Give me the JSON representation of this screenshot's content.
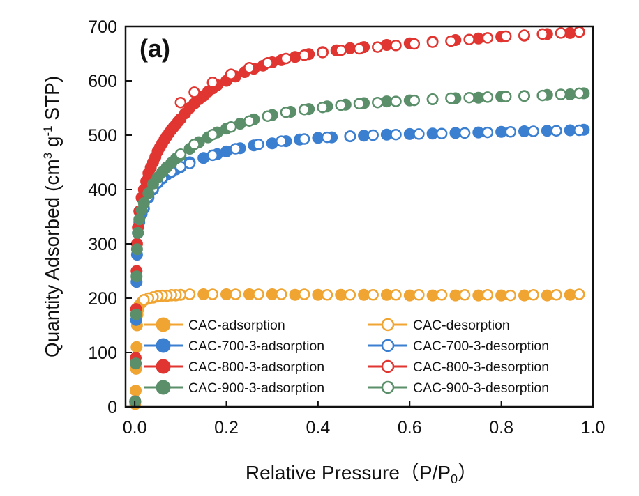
{
  "chart_data": {
    "type": "scatter",
    "panel_label": "(a)",
    "xlabel": {
      "main": "Relative Pressure（P/P",
      "sub": "0",
      "end": "）"
    },
    "ylabel": {
      "part1": "Quantity Adsorbed (cm",
      "sup1": "3",
      "part2": " g",
      "sup2": "-1",
      "part3": " STP)"
    },
    "xlim": [
      -0.02,
      1.0
    ],
    "ylim": [
      0,
      700
    ],
    "xticks": [
      "0.0",
      "0.2",
      "0.4",
      "0.6",
      "0.8",
      "1.0"
    ],
    "yticks": [
      "0",
      "100",
      "200",
      "300",
      "400",
      "500",
      "600",
      "700"
    ],
    "grid": false,
    "legend_position": "lower-right",
    "series": [
      {
        "name": "CAC-adsorption",
        "color": "#f0a533",
        "filled": true,
        "points": [
          [
            0.001,
            5
          ],
          [
            0.002,
            30
          ],
          [
            0.003,
            70
          ],
          [
            0.004,
            110
          ],
          [
            0.005,
            150
          ],
          [
            0.006,
            170
          ],
          [
            0.008,
            180
          ],
          [
            0.01,
            187
          ],
          [
            0.015,
            192
          ],
          [
            0.02,
            196
          ],
          [
            0.03,
            199
          ],
          [
            0.04,
            201
          ],
          [
            0.05,
            203
          ],
          [
            0.06,
            204
          ],
          [
            0.07,
            204
          ],
          [
            0.08,
            205
          ],
          [
            0.09,
            205
          ],
          [
            0.1,
            206
          ],
          [
            0.15,
            207
          ],
          [
            0.2,
            207
          ],
          [
            0.25,
            207
          ],
          [
            0.3,
            207
          ],
          [
            0.35,
            206
          ],
          [
            0.4,
            206
          ],
          [
            0.45,
            206
          ],
          [
            0.5,
            206
          ],
          [
            0.55,
            206
          ],
          [
            0.6,
            205
          ],
          [
            0.65,
            205
          ],
          [
            0.7,
            205
          ],
          [
            0.75,
            205
          ],
          [
            0.8,
            205
          ],
          [
            0.85,
            205
          ],
          [
            0.9,
            205
          ],
          [
            0.95,
            206
          ]
        ]
      },
      {
        "name": "CAC-desorption",
        "color": "#f0a533",
        "filled": false,
        "points": [
          [
            0.97,
            207
          ],
          [
            0.92,
            206
          ],
          [
            0.87,
            206
          ],
          [
            0.82,
            205
          ],
          [
            0.77,
            206
          ],
          [
            0.72,
            206
          ],
          [
            0.67,
            206
          ],
          [
            0.62,
            206
          ],
          [
            0.57,
            206
          ],
          [
            0.52,
            206
          ],
          [
            0.47,
            206
          ],
          [
            0.42,
            206
          ],
          [
            0.37,
            207
          ],
          [
            0.32,
            207
          ],
          [
            0.27,
            207
          ],
          [
            0.22,
            207
          ],
          [
            0.17,
            207
          ],
          [
            0.12,
            207
          ],
          [
            0.1,
            206
          ],
          [
            0.09,
            206
          ],
          [
            0.08,
            206
          ],
          [
            0.07,
            205
          ],
          [
            0.06,
            205
          ],
          [
            0.05,
            204
          ],
          [
            0.04,
            202
          ],
          [
            0.03,
            200
          ],
          [
            0.02,
            197
          ]
        ]
      },
      {
        "name": "CAC-700-3-adsorption",
        "color": "#3b7fd0",
        "filled": true,
        "points": [
          [
            0.001,
            10
          ],
          [
            0.002,
            80
          ],
          [
            0.003,
            160
          ],
          [
            0.004,
            230
          ],
          [
            0.005,
            280
          ],
          [
            0.007,
            320
          ],
          [
            0.01,
            340
          ],
          [
            0.015,
            355
          ],
          [
            0.02,
            365
          ],
          [
            0.03,
            385
          ],
          [
            0.04,
            400
          ],
          [
            0.05,
            412
          ],
          [
            0.06,
            420
          ],
          [
            0.07,
            427
          ],
          [
            0.08,
            432
          ],
          [
            0.09,
            437
          ],
          [
            0.1,
            441
          ],
          [
            0.12,
            450
          ],
          [
            0.15,
            458
          ],
          [
            0.18,
            465
          ],
          [
            0.2,
            470
          ],
          [
            0.23,
            476
          ],
          [
            0.26,
            481
          ],
          [
            0.3,
            485
          ],
          [
            0.33,
            489
          ],
          [
            0.36,
            492
          ],
          [
            0.4,
            495
          ],
          [
            0.43,
            496
          ],
          [
            0.47,
            498
          ],
          [
            0.5,
            499
          ],
          [
            0.55,
            501
          ],
          [
            0.6,
            502
          ],
          [
            0.65,
            503
          ],
          [
            0.7,
            504
          ],
          [
            0.75,
            505
          ],
          [
            0.8,
            506
          ],
          [
            0.85,
            507
          ],
          [
            0.9,
            508
          ],
          [
            0.95,
            509
          ],
          [
            0.98,
            510
          ]
        ]
      },
      {
        "name": "CAC-700-3-desorption",
        "color": "#3b7fd0",
        "filled": false,
        "points": [
          [
            0.97,
            509
          ],
          [
            0.92,
            508
          ],
          [
            0.87,
            507
          ],
          [
            0.82,
            506
          ],
          [
            0.77,
            505
          ],
          [
            0.72,
            504
          ],
          [
            0.67,
            503
          ],
          [
            0.62,
            502
          ],
          [
            0.57,
            501
          ],
          [
            0.52,
            500
          ],
          [
            0.47,
            498
          ],
          [
            0.42,
            496
          ],
          [
            0.37,
            493
          ],
          [
            0.32,
            489
          ],
          [
            0.27,
            483
          ],
          [
            0.22,
            475
          ],
          [
            0.17,
            463
          ],
          [
            0.12,
            448
          ],
          [
            0.1,
            442
          ],
          [
            0.08,
            433
          ],
          [
            0.06,
            421
          ],
          [
            0.05,
            413
          ],
          [
            0.04,
            401
          ],
          [
            0.03,
            387
          ],
          [
            0.02,
            366
          ]
        ]
      },
      {
        "name": "CAC-800-3-adsorption",
        "color": "#e03530",
        "filled": true,
        "points": [
          [
            0.001,
            10
          ],
          [
            0.002,
            90
          ],
          [
            0.003,
            180
          ],
          [
            0.004,
            250
          ],
          [
            0.005,
            300
          ],
          [
            0.007,
            330
          ],
          [
            0.01,
            360
          ],
          [
            0.015,
            385
          ],
          [
            0.02,
            400
          ],
          [
            0.025,
            415
          ],
          [
            0.03,
            430
          ],
          [
            0.035,
            440
          ],
          [
            0.04,
            450
          ],
          [
            0.045,
            460
          ],
          [
            0.05,
            470
          ],
          [
            0.055,
            478
          ],
          [
            0.06,
            485
          ],
          [
            0.065,
            492
          ],
          [
            0.07,
            498
          ],
          [
            0.075,
            504
          ],
          [
            0.08,
            510
          ],
          [
            0.085,
            515
          ],
          [
            0.09,
            520
          ],
          [
            0.095,
            525
          ],
          [
            0.1,
            530
          ],
          [
            0.11,
            540
          ],
          [
            0.12,
            550
          ],
          [
            0.13,
            558
          ],
          [
            0.14,
            566
          ],
          [
            0.15,
            572
          ],
          [
            0.16,
            580
          ],
          [
            0.17,
            586
          ],
          [
            0.18,
            592
          ],
          [
            0.2,
            600
          ],
          [
            0.22,
            608
          ],
          [
            0.24,
            616
          ],
          [
            0.26,
            622
          ],
          [
            0.28,
            628
          ],
          [
            0.3,
            634
          ],
          [
            0.32,
            638
          ],
          [
            0.35,
            644
          ],
          [
            0.38,
            649
          ],
          [
            0.41,
            653
          ],
          [
            0.44,
            656
          ],
          [
            0.47,
            660
          ],
          [
            0.5,
            662
          ],
          [
            0.55,
            666
          ],
          [
            0.6,
            669
          ],
          [
            0.65,
            672
          ],
          [
            0.7,
            675
          ],
          [
            0.75,
            678
          ],
          [
            0.8,
            681
          ],
          [
            0.85,
            683
          ],
          [
            0.9,
            686
          ],
          [
            0.95,
            688
          ],
          [
            0.97,
            690
          ]
        ]
      },
      {
        "name": "CAC-800-3-desorption",
        "color": "#e03530",
        "filled": false,
        "points": [
          [
            0.97,
            690
          ],
          [
            0.93,
            688
          ],
          [
            0.89,
            686
          ],
          [
            0.85,
            684
          ],
          [
            0.81,
            682
          ],
          [
            0.77,
            679
          ],
          [
            0.73,
            676
          ],
          [
            0.69,
            673
          ],
          [
            0.65,
            671
          ],
          [
            0.61,
            668
          ],
          [
            0.57,
            665
          ],
          [
            0.53,
            662
          ],
          [
            0.49,
            659
          ],
          [
            0.45,
            656
          ],
          [
            0.41,
            652
          ],
          [
            0.37,
            647
          ],
          [
            0.33,
            641
          ],
          [
            0.29,
            633
          ],
          [
            0.25,
            624
          ],
          [
            0.21,
            612
          ],
          [
            0.17,
            597
          ],
          [
            0.13,
            579
          ],
          [
            0.1,
            560
          ]
        ]
      },
      {
        "name": "CAC-900-3-adsorption",
        "color": "#5a8f6a",
        "filled": true,
        "points": [
          [
            0.001,
            10
          ],
          [
            0.002,
            80
          ],
          [
            0.003,
            170
          ],
          [
            0.004,
            240
          ],
          [
            0.005,
            290
          ],
          [
            0.007,
            320
          ],
          [
            0.01,
            345
          ],
          [
            0.015,
            362
          ],
          [
            0.02,
            375
          ],
          [
            0.03,
            393
          ],
          [
            0.04,
            410
          ],
          [
            0.05,
            422
          ],
          [
            0.06,
            432
          ],
          [
            0.07,
            441
          ],
          [
            0.08,
            449
          ],
          [
            0.09,
            457
          ],
          [
            0.1,
            463
          ],
          [
            0.12,
            475
          ],
          [
            0.14,
            487
          ],
          [
            0.16,
            496
          ],
          [
            0.18,
            505
          ],
          [
            0.2,
            512
          ],
          [
            0.23,
            521
          ],
          [
            0.26,
            529
          ],
          [
            0.3,
            537
          ],
          [
            0.34,
            543
          ],
          [
            0.38,
            548
          ],
          [
            0.42,
            553
          ],
          [
            0.46,
            556
          ],
          [
            0.5,
            559
          ],
          [
            0.55,
            562
          ],
          [
            0.6,
            564
          ],
          [
            0.65,
            566
          ],
          [
            0.7,
            568
          ],
          [
            0.75,
            569
          ],
          [
            0.8,
            571
          ],
          [
            0.85,
            572
          ],
          [
            0.9,
            574
          ],
          [
            0.95,
            575
          ],
          [
            0.98,
            577
          ]
        ]
      },
      {
        "name": "CAC-900-3-desorption",
        "color": "#5a8f6a",
        "filled": false,
        "points": [
          [
            0.97,
            577
          ],
          [
            0.93,
            575
          ],
          [
            0.89,
            573
          ],
          [
            0.85,
            572
          ],
          [
            0.81,
            571
          ],
          [
            0.77,
            570
          ],
          [
            0.73,
            569
          ],
          [
            0.69,
            568
          ],
          [
            0.65,
            566
          ],
          [
            0.61,
            564
          ],
          [
            0.57,
            562
          ],
          [
            0.53,
            560
          ],
          [
            0.49,
            558
          ],
          [
            0.45,
            555
          ],
          [
            0.41,
            551
          ],
          [
            0.37,
            547
          ],
          [
            0.33,
            542
          ],
          [
            0.29,
            535
          ],
          [
            0.25,
            526
          ],
          [
            0.21,
            515
          ],
          [
            0.17,
            501
          ],
          [
            0.13,
            483
          ],
          [
            0.1,
            465
          ]
        ]
      }
    ],
    "legend": [
      [
        "CAC-adsorption",
        "CAC-desorption"
      ],
      [
        "CAC-700-3-adsorption",
        "CAC-700-3-desorption"
      ],
      [
        "CAC-800-3-adsorption",
        "CAC-800-3-desorption"
      ],
      [
        "CAC-900-3-adsorption",
        "CAC-900-3-desorption"
      ]
    ]
  }
}
